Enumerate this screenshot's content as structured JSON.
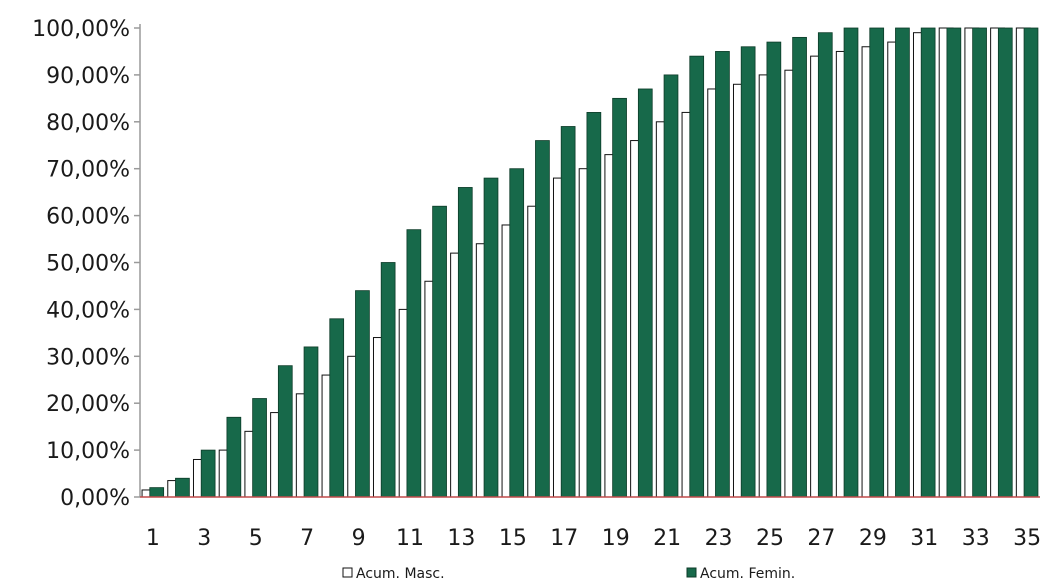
{
  "chart_data": {
    "type": "bar",
    "title": "",
    "xlabel": "",
    "ylabel": "",
    "ylim": [
      0,
      100
    ],
    "y_ticks": [
      "0,00%",
      "10,00%",
      "20,00%",
      "30,00%",
      "40,00%",
      "50,00%",
      "60,00%",
      "70,00%",
      "80,00%",
      "90,00%",
      "100,00%"
    ],
    "x_tick_labels": [
      "1",
      "3",
      "5",
      "7",
      "9",
      "11",
      "13",
      "15",
      "17",
      "19",
      "21",
      "23",
      "25",
      "27",
      "29",
      "31",
      "33",
      "35"
    ],
    "categories": [
      1,
      2,
      3,
      4,
      5,
      6,
      7,
      8,
      9,
      10,
      11,
      12,
      13,
      14,
      15,
      16,
      17,
      18,
      19,
      20,
      21,
      22,
      23,
      24,
      25,
      26,
      27,
      28,
      29,
      30,
      31,
      32,
      33,
      34,
      35
    ],
    "legend_position": "bottom",
    "grid": false,
    "series": [
      {
        "name": "Acum. Masc.",
        "color": "#ffffff",
        "values": [
          1.5,
          3.5,
          8,
          10,
          14,
          18,
          22,
          26,
          30,
          34,
          40,
          46,
          52,
          54,
          58,
          62,
          68,
          70,
          73,
          76,
          80,
          82,
          87,
          88,
          90,
          91,
          94,
          95,
          96,
          97,
          99,
          100,
          100,
          100,
          100
        ]
      },
      {
        "name": "Acum. Femin.",
        "color": "#17694a",
        "values": [
          2,
          4,
          10,
          17,
          21,
          28,
          32,
          38,
          44,
          50,
          57,
          62,
          66,
          68,
          70,
          76,
          79,
          82,
          85,
          87,
          90,
          94,
          95,
          96,
          97,
          98,
          99,
          100,
          100,
          100,
          100,
          100,
          100,
          100,
          100
        ]
      }
    ]
  }
}
